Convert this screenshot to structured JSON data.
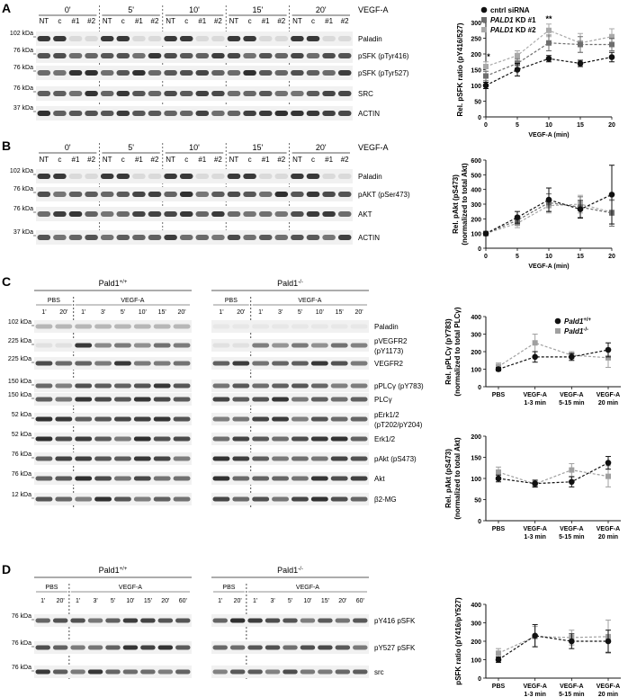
{
  "panels": {
    "A": {
      "label": "A",
      "blot": {
        "treatment_label": "VEGF-A",
        "timepoints": [
          "0'",
          "5'",
          "10'",
          "15'",
          "20'"
        ],
        "lanes": [
          "NT",
          "c",
          "#1",
          "#2"
        ],
        "rows": [
          {
            "name": "Paladin",
            "mw": "102 kDa"
          },
          {
            "name": "pSFK (pTyr416)",
            "mw": "76 kDa"
          },
          {
            "name": "pSFK (pTyr527)",
            "mw": "76 kDa"
          },
          {
            "name": "SRC",
            "mw": "76 kDa"
          },
          {
            "name": "ACTIN",
            "mw": "37 kDa"
          }
        ]
      }
    },
    "B": {
      "label": "B",
      "blot": {
        "treatment_label": "VEGF-A",
        "timepoints": [
          "0'",
          "5'",
          "10'",
          "15'",
          "20'"
        ],
        "lanes": [
          "NT",
          "c",
          "#1",
          "#2"
        ],
        "rows": [
          {
            "name": "Paladin",
            "mw": "102 kDa"
          },
          {
            "name": "pAKT (pSer473)",
            "mw": "76 kDa"
          },
          {
            "name": "AKT",
            "mw": "76 kDa"
          },
          {
            "name": "ACTIN",
            "mw": "37 kDa"
          }
        ]
      }
    },
    "C": {
      "label": "C",
      "blot": {
        "genotypes": [
          {
            "base": "Pald1",
            "sup": "+/+"
          },
          {
            "base": "Pald1",
            "sup": "-/-"
          }
        ],
        "groups": [
          "PBS",
          "VEGF-A"
        ],
        "pbs_times": [
          "1'",
          "20'"
        ],
        "vegf_times": [
          "1'",
          "3'",
          "5'",
          "10'",
          "15'",
          "20'"
        ],
        "rows": [
          {
            "name": "Paladin",
            "mw": "102 kDa"
          },
          {
            "name": "pVEGFR2\n(pY1173)",
            "mw": "225 kDa"
          },
          {
            "name": "VEGFR2",
            "mw": "225 kDa"
          },
          {
            "name": "pPLCγ (pY783)",
            "mw": "150 kDa"
          },
          {
            "name": "PLCγ",
            "mw": "150 kDa"
          },
          {
            "name": "pErk1/2\n(pT202/pY204)",
            "mw": "52 kDa"
          },
          {
            "name": "Erk1/2",
            "mw": "52 kDa"
          },
          {
            "name": "pAkt (pS473)",
            "mw": "76 kDa"
          },
          {
            "name": "Akt",
            "mw": "76 kDa"
          },
          {
            "name": "β2-MG",
            "mw": "12 kDa"
          }
        ]
      }
    },
    "D": {
      "label": "D",
      "blot": {
        "genotypes": [
          {
            "base": "Pald1",
            "sup": "+/+"
          },
          {
            "base": "Pald1",
            "sup": "-/-"
          }
        ],
        "groups": [
          "PBS",
          "VEGF-A"
        ],
        "pbs_times": [
          "1'",
          "20'"
        ],
        "vegf_times": [
          "1'",
          "3'",
          "5'",
          "10'",
          "15'",
          "20'",
          "60'"
        ],
        "rows": [
          {
            "name": "pY416 pSFK",
            "mw": "76 kDa"
          },
          {
            "name": "pY527 pSFK",
            "mw": "76 kDa"
          },
          {
            "name": "src",
            "mw": "76 kDa"
          }
        ]
      }
    }
  },
  "chart_data": [
    {
      "panel": "A",
      "type": "line",
      "x": [
        0,
        5,
        10,
        15,
        20
      ],
      "xlabel": "VEGF-A (min)",
      "ylabel": "Rel. pSFK ratio (pY416/527)",
      "xlim": [
        0,
        20
      ],
      "ylim": [
        0,
        300
      ],
      "xticks": [
        0,
        5,
        10,
        15,
        20
      ],
      "yticks": [
        0,
        50,
        100,
        150,
        200,
        250,
        300
      ],
      "legend": "top-right",
      "annotations": [
        {
          "x": 0,
          "text": "*"
        },
        {
          "x": 10,
          "text": "**"
        }
      ],
      "series": [
        {
          "name": "cntrl siRNA",
          "marker": "circle",
          "color": "#111111",
          "values": [
            100,
            150,
            185,
            170,
            190
          ],
          "err": [
            10,
            20,
            10,
            10,
            15
          ]
        },
        {
          "name": "PALD1 KD #1",
          "name_italic": "PALD1",
          "name_rest": " KD #1",
          "marker": "square",
          "color": "#6e6e6e",
          "values": [
            130,
            170,
            235,
            230,
            230
          ],
          "err": [
            15,
            15,
            25,
            25,
            20
          ]
        },
        {
          "name": "PALD1 KD #2",
          "name_italic": "PALD1",
          "name_rest": " KD #2",
          "marker": "square",
          "color": "#a9a9a9",
          "values": [
            160,
            195,
            275,
            235,
            255
          ],
          "err": [
            15,
            15,
            20,
            30,
            25
          ]
        }
      ]
    },
    {
      "panel": "B",
      "type": "line",
      "x": [
        0,
        5,
        10,
        15,
        20
      ],
      "xlabel": "VEGF-A (min)",
      "ylabel": "Rel. pAkt (pS473)\n(normalized to total Akt)",
      "xlim": [
        0,
        20
      ],
      "ylim": [
        0,
        600
      ],
      "xticks": [
        0,
        5,
        10,
        15,
        20
      ],
      "yticks": [
        0,
        100,
        200,
        300,
        400,
        500,
        600
      ],
      "series": [
        {
          "marker": "circle",
          "color": "#111111",
          "values": [
            100,
            210,
            330,
            265,
            365
          ],
          "err": [
            10,
            40,
            80,
            60,
            200
          ]
        },
        {
          "marker": "square",
          "color": "#6e6e6e",
          "values": [
            100,
            190,
            310,
            280,
            240
          ],
          "err": [
            10,
            30,
            60,
            70,
            90
          ]
        },
        {
          "marker": "square",
          "color": "#a9a9a9",
          "values": [
            100,
            170,
            290,
            300,
            245
          ],
          "err": [
            10,
            30,
            50,
            60,
            80
          ]
        }
      ]
    },
    {
      "panel": "C",
      "type": "line",
      "categories": [
        "PBS",
        "VEGF-A\n1-3 min",
        "VEGF-A\n5-15 min",
        "VEGF-A\n20 min"
      ],
      "ylabel": "Rel. pPLCγ (pY783)\n(normalized to total PLCγ)",
      "ylim": [
        0,
        400
      ],
      "yticks": [
        0,
        100,
        200,
        300,
        400
      ],
      "legend": "top-right",
      "series": [
        {
          "name": "Pald1+/+",
          "name_base": "Pald1",
          "name_sup": "+/+",
          "marker": "circle",
          "color": "#111111",
          "values": [
            100,
            170,
            170,
            210
          ],
          "err": [
            10,
            30,
            20,
            40
          ]
        },
        {
          "name": "Pald1-/-",
          "name_base": "Pald1",
          "name_sup": "-/-",
          "marker": "square",
          "color": "#a0a0a0",
          "values": [
            115,
            250,
            180,
            165
          ],
          "err": [
            20,
            50,
            20,
            55
          ]
        }
      ]
    },
    {
      "panel": "C",
      "type": "line",
      "categories": [
        "PBS",
        "VEGF-A\n1-3 min",
        "VEGF-A\n5-15 min",
        "VEGF-A\n20 min"
      ],
      "ylabel": "Rel. pAkt (pS473)\n(normalized to total Akt)",
      "ylim": [
        0,
        200
      ],
      "yticks": [
        0,
        50,
        100,
        150,
        200
      ],
      "series": [
        {
          "marker": "circle",
          "color": "#111111",
          "values": [
            100,
            88,
            92,
            137
          ],
          "err": [
            8,
            8,
            12,
            15
          ]
        },
        {
          "marker": "square",
          "color": "#a0a0a0",
          "values": [
            115,
            87,
            120,
            105
          ],
          "err": [
            12,
            8,
            15,
            25
          ]
        }
      ]
    },
    {
      "panel": "D",
      "type": "line",
      "categories": [
        "PBS",
        "VEGF-A\n1-3 min",
        "VEGF-A\n5-15 min",
        "VEGF-A\n20 min"
      ],
      "ylabel": "pSFK ratio (pY416/pY527)",
      "ylim": [
        0,
        400
      ],
      "yticks": [
        0,
        100,
        200,
        300,
        400
      ],
      "series": [
        {
          "marker": "circle",
          "color": "#111111",
          "values": [
            100,
            230,
            200,
            200
          ],
          "err": [
            15,
            60,
            40,
            60
          ]
        },
        {
          "marker": "square",
          "color": "#a0a0a0",
          "values": [
            135,
            225,
            220,
            225
          ],
          "err": [
            25,
            55,
            40,
            90
          ]
        }
      ]
    }
  ]
}
